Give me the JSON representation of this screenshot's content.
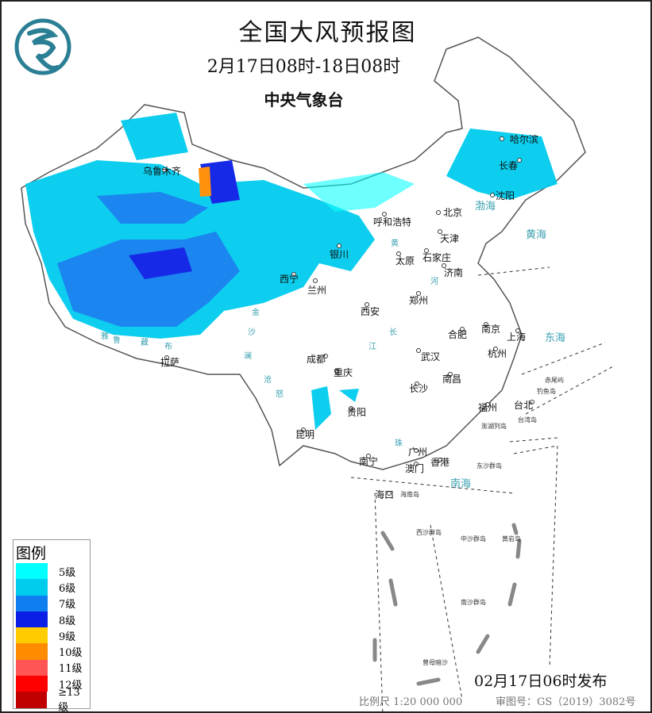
{
  "header": {
    "title": "全国大风预报图",
    "period": "2月17日08时-18日08时",
    "issuer": "中央气象台",
    "logo": "cma-logo"
  },
  "legend": {
    "title": "图例",
    "items": [
      {
        "label": "5级",
        "color": "#00ffff"
      },
      {
        "label": "6级",
        "color": "#00ccee"
      },
      {
        "label": "7级",
        "color": "#0f7ff0"
      },
      {
        "label": "8级",
        "color": "#0a1ee6"
      },
      {
        "label": "9级",
        "color": "#ffcc00"
      },
      {
        "label": "10级",
        "color": "#ff8c00"
      },
      {
        "label": "11级",
        "color": "#ff5555"
      },
      {
        "label": "12级",
        "color": "#ff0000"
      },
      {
        "label": "≥13级",
        "color": "#c00000"
      }
    ]
  },
  "cities": [
    {
      "name": "哈尔滨",
      "lon": 126.6,
      "lat": 45.8
    },
    {
      "name": "长春",
      "lon": 125.3,
      "lat": 43.9
    },
    {
      "name": "沈阳",
      "lon": 123.4,
      "lat": 41.8
    },
    {
      "name": "北京",
      "lon": 116.4,
      "lat": 39.9
    },
    {
      "name": "天津",
      "lon": 117.2,
      "lat": 39.1
    },
    {
      "name": "呼和浩特",
      "lon": 111.7,
      "lat": 40.8
    },
    {
      "name": "石家庄",
      "lon": 114.5,
      "lat": 38.0
    },
    {
      "name": "太原",
      "lon": 112.5,
      "lat": 37.9
    },
    {
      "name": "济南",
      "lon": 117.0,
      "lat": 36.7
    },
    {
      "name": "银川",
      "lon": 106.2,
      "lat": 38.5
    },
    {
      "name": "西宁",
      "lon": 101.8,
      "lat": 36.6
    },
    {
      "name": "兰州",
      "lon": 103.8,
      "lat": 36.1
    },
    {
      "name": "郑州",
      "lon": 113.6,
      "lat": 34.8
    },
    {
      "name": "西安",
      "lon": 108.9,
      "lat": 34.3
    },
    {
      "name": "合肥",
      "lon": 117.3,
      "lat": 31.8
    },
    {
      "name": "南京",
      "lon": 118.8,
      "lat": 32.1
    },
    {
      "name": "上海",
      "lon": 121.5,
      "lat": 31.2
    },
    {
      "name": "杭州",
      "lon": 120.2,
      "lat": 30.3
    },
    {
      "name": "武汉",
      "lon": 114.3,
      "lat": 30.6
    },
    {
      "name": "成都",
      "lon": 104.1,
      "lat": 30.7
    },
    {
      "name": "重庆",
      "lon": 106.5,
      "lat": 29.6
    },
    {
      "name": "长沙",
      "lon": 113.0,
      "lat": 28.2
    },
    {
      "name": "南昌",
      "lon": 115.9,
      "lat": 28.7
    },
    {
      "name": "拉萨",
      "lon": 91.1,
      "lat": 29.7
    },
    {
      "name": "贵阳",
      "lon": 106.7,
      "lat": 26.6
    },
    {
      "name": "福州",
      "lon": 119.3,
      "lat": 26.1
    },
    {
      "name": "台北",
      "lon": 121.5,
      "lat": 25.0
    },
    {
      "name": "昆明",
      "lon": 102.7,
      "lat": 25.0
    },
    {
      "name": "南宁",
      "lon": 108.3,
      "lat": 22.8
    },
    {
      "name": "广州",
      "lon": 113.3,
      "lat": 23.1
    },
    {
      "name": "澳门",
      "lon": 113.5,
      "lat": 22.2
    },
    {
      "name": "香港",
      "lon": 114.2,
      "lat": 22.3
    },
    {
      "name": "海口",
      "lon": 110.3,
      "lat": 20.0
    },
    {
      "name": "乌鲁木齐",
      "lon": 87.6,
      "lat": 43.8
    }
  ],
  "islands": [
    "台湾岛",
    "海南岛",
    "东沙群岛",
    "西沙群岛",
    "中沙群岛",
    "黄岩岛",
    "南沙群岛",
    "曾母暗沙",
    "钓鱼岛",
    "赤尾屿",
    "澎湖列岛"
  ],
  "seas": [
    "渤海",
    "黄海",
    "东海",
    "南海"
  ],
  "rivers": [
    "黄",
    "河",
    "长",
    "江",
    "金",
    "沙",
    "澜",
    "沧",
    "怒",
    "雅",
    "鲁",
    "藏",
    "布",
    "珠"
  ],
  "footer": {
    "issued": "02月17日06时发布",
    "scale": "比例尺 1:20 000 000",
    "review_no": "审图号：GS（2019）3082号"
  }
}
